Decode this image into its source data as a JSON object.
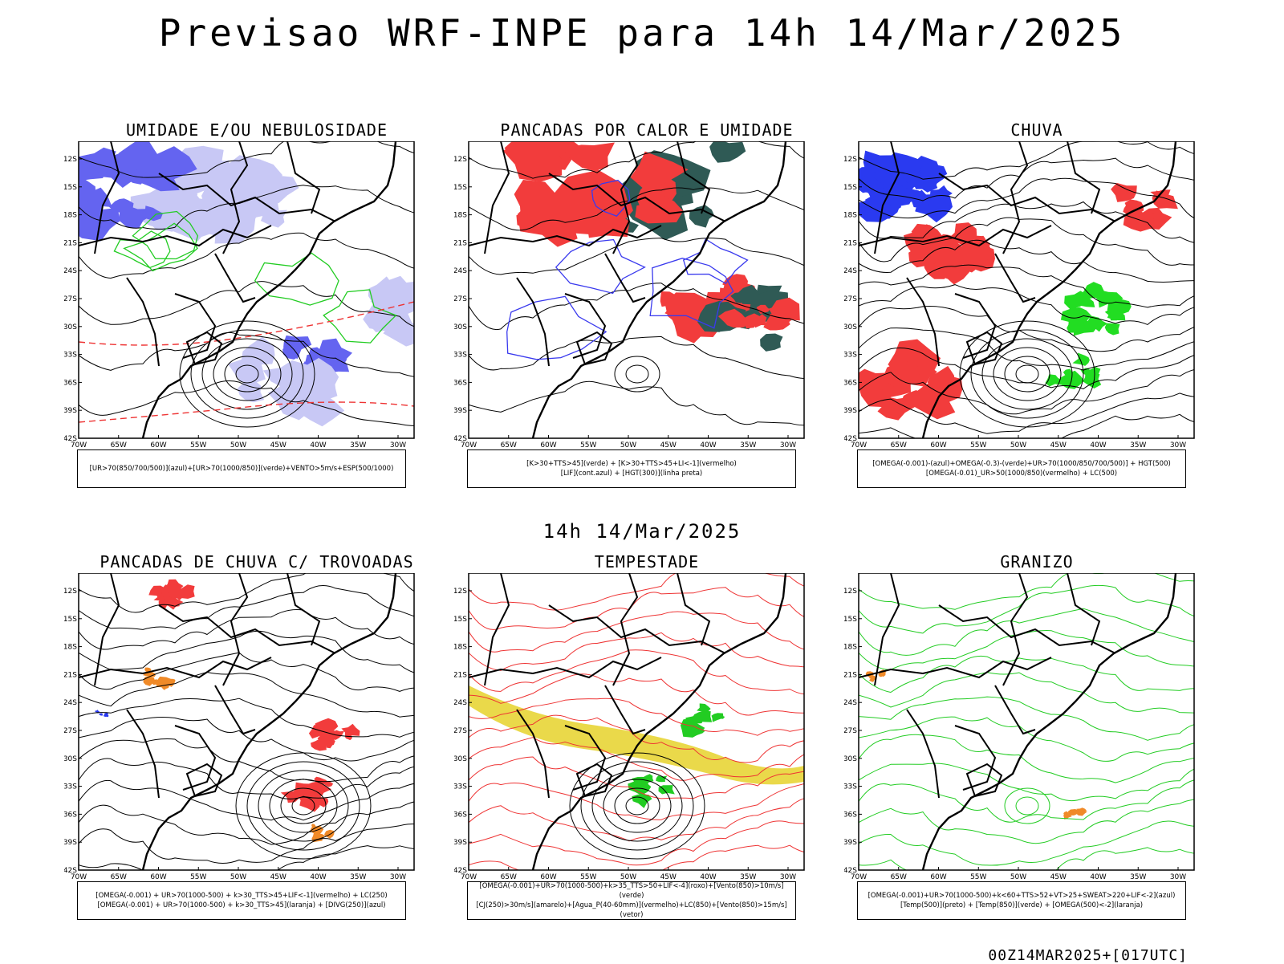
{
  "header": {
    "title": "Previsao WRF-INPE  para 14h 14/Mar/2025"
  },
  "middle": {
    "label": "14h 14/Mar/2025"
  },
  "footer": {
    "run": "00Z14MAR2025+[017UTC]"
  },
  "axes": {
    "lat_ticks": [
      "12S",
      "15S",
      "18S",
      "21S",
      "24S",
      "27S",
      "30S",
      "33S",
      "36S",
      "39S",
      "42S"
    ],
    "lon_ticks": [
      "70W",
      "65W",
      "60W",
      "55W",
      "50W",
      "45W",
      "40W",
      "35W",
      "30W"
    ]
  },
  "panels": [
    {
      "id": "umidade",
      "title": "UMIDADE E/OU NEBULOSIDADE",
      "legend": [
        "[UR>70(850/700/500)](azul)+[UR>70(1000/850)](verde)+VENTO>5m/s+ESP(500/1000)"
      ],
      "colors": {
        "fill1": "#6464f0",
        "fill2": "#c8c8f5",
        "line1": "#22cc22",
        "line2": "#ee3333"
      }
    },
    {
      "id": "pancadas-calor",
      "title": "PANCADAS POR CALOR E UMIDADE",
      "legend": [
        "[K>30+TTS>45](verde) + [K>30+TTS>45+LI<-1](vermelho)",
        "[LIF](cont.azul) + [HGT(300)](linha preta)"
      ],
      "colors": {
        "fill1": "#f23c3c",
        "fill2": "#2f5a55",
        "line1": "#3a3aee"
      }
    },
    {
      "id": "chuva",
      "title": "CHUVA",
      "legend": [
        "[OMEGA(-0.001)-(azul)+OMEGA(-0.3)-(verde)+UR>70(1000/850/700/500)] + HGT(500)",
        "[OMEGA(-0.01)_UR>50(1000/850)(vermelho) + LC(500)"
      ],
      "colors": {
        "fill1": "#f23c3c",
        "fill2": "#2a3af0",
        "fill3": "#22dd22"
      }
    },
    {
      "id": "pancadas-trovoadas",
      "title": "PANCADAS DE CHUVA C/ TROVOADAS",
      "legend": [
        "[OMEGA(-0.001) + UR>70(1000-500) + k>30_TTS>45+LIF<-1](vermelho) + LC(250)",
        "[OMEGA(-0.001) + UR>70(1000-500) + k>30_TTS>45](laranja) + [DIVG(250)](azul)"
      ],
      "colors": {
        "fill1": "#f23c3c",
        "fill2": "#f08a28",
        "fill3": "#2a3af0"
      }
    },
    {
      "id": "tempestade",
      "title": "TEMPESTADE",
      "legend": [
        "[OMEGA(-0.001)+UR>70(1000-500)+k>35_TTS>50+LIF<-4](roxo)+[Vento(850)>10m/s](verde)",
        "[CJ(250)>30m/s](amarelo)+[Agua_P(40-60mm)](vermelho)+LC(850)+[Vento(850)>15m/s](vetor)"
      ],
      "colors": {
        "fill1": "#e6d22a",
        "fill2": "#22cc22",
        "line1": "#ee3333"
      }
    },
    {
      "id": "granizo",
      "title": "GRANIZO",
      "legend": [
        "[OMEGA(-0.001)+UR>70(1000-500)+k<60+TTS>52+VT>25+SWEAT>220+LIF<-2](azul)",
        "[Temp(500)](preto) + [Temp(850)](verde) + [OMEGA(500)<-2](laranja)"
      ],
      "colors": {
        "line1": "#22cc22",
        "fill1": "#f08a28"
      }
    }
  ]
}
